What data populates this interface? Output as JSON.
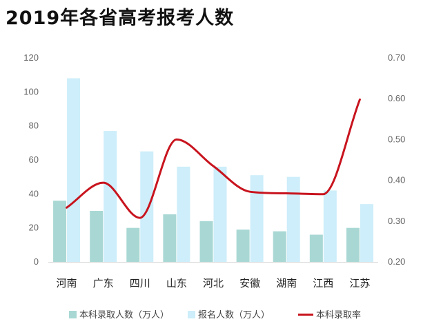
{
  "title": "2019年各省高考报考人数",
  "chart_data": {
    "type": "bar",
    "title": "2019年各省高考报考人数",
    "categories": [
      "河南",
      "广东",
      "四川",
      "山东",
      "河北",
      "安徽",
      "湖南",
      "江西",
      "江苏"
    ],
    "series": [
      {
        "name": "本科录取人数（万人）",
        "type": "bar",
        "axis": "left",
        "color": "#a9d8d4",
        "values": [
          36,
          30,
          20,
          28,
          24,
          19,
          18,
          16,
          20
        ]
      },
      {
        "name": "报名人数（万人）",
        "type": "bar",
        "axis": "left",
        "color": "#cdeefa",
        "values": [
          108,
          77,
          65,
          56,
          56,
          51,
          50,
          42,
          34
        ]
      },
      {
        "name": "本科录取率",
        "type": "line",
        "axis": "right",
        "color": "#c8141e",
        "values": [
          0.333,
          0.394,
          0.308,
          0.5,
          0.435,
          0.372,
          0.368,
          0.366,
          0.598
        ]
      }
    ],
    "y_left": {
      "min": 0,
      "max": 120,
      "ticks": [
        0,
        20,
        40,
        60,
        80,
        100,
        120
      ]
    },
    "y_right": {
      "min": 0.2,
      "max": 0.7,
      "ticks": [
        "0.20",
        "0.30",
        "0.40",
        "0.50",
        "0.60",
        "0.70"
      ]
    },
    "grid": false,
    "legend_position": "bottom"
  }
}
